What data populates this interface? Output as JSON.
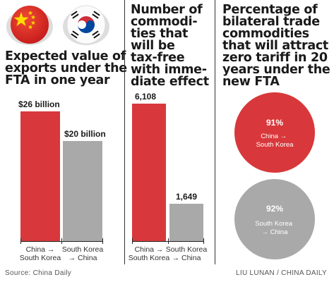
{
  "colors": {
    "red": "#d8383b",
    "gray": "#a9a9a9",
    "text": "#1a1a1a"
  },
  "icons": {
    "china": "china-flag-icon",
    "korea": "south-korea-flag-icon"
  },
  "panels": {
    "exports": {
      "title": "Expected value of\nexports under the\nFTA in one year"
    },
    "commodities": {
      "title": "Number of\ncommodi-\nties that\nwill be\ntax-free\nwith imme-\ndiate effect"
    },
    "zero_tariff": {
      "title": "Percentage of\nbilateral trade\ncommodities\nthat will attract\nzero tariff in 20\nyears under the\nnew FTA"
    }
  },
  "chart_data": [
    {
      "type": "bar",
      "categories": [
        "China →\nSouth Korea",
        "South Korea\n→ China"
      ],
      "values": [
        26,
        20
      ],
      "value_labels": [
        "$26 billion",
        "$20 billion"
      ],
      "unit": "billion USD",
      "title": "Expected value of exports under the FTA in one year"
    },
    {
      "type": "bar",
      "categories": [
        "China →\nSouth Korea",
        "South Korea\n→ China"
      ],
      "values": [
        6108,
        1649
      ],
      "value_labels": [
        "6,108",
        "1,649"
      ],
      "title": "Number of commodities that will be tax-free with immediate effect"
    },
    {
      "type": "circles",
      "categories": [
        "China →\nSouth Korea",
        "South Korea\n→ China"
      ],
      "values": [
        91,
        92
      ],
      "value_labels": [
        "91%",
        "92%"
      ],
      "title": "Percentage of bilateral trade commodities that will attract zero tariff in 20 years under the new FTA"
    }
  ],
  "footer": {
    "source": "Source: China Daily",
    "credit": "LIU LUNAN / CHINA DAILY"
  }
}
